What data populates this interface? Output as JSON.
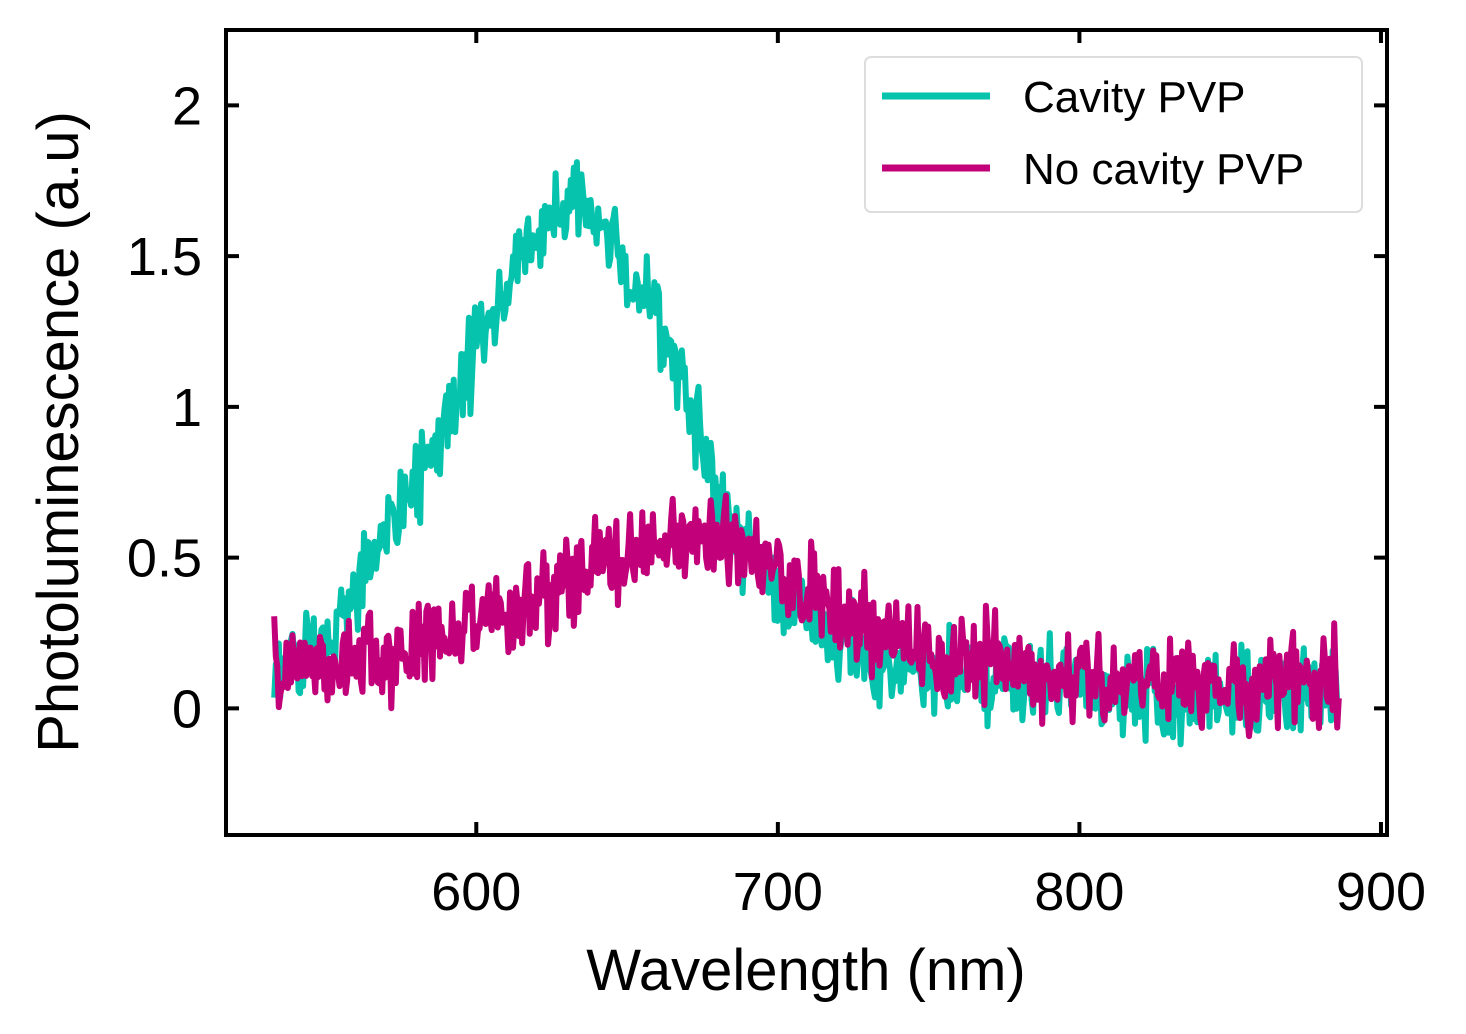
{
  "chart_data": {
    "type": "line",
    "title": "",
    "xlabel": "Wavelength (nm)",
    "ylabel": "Photoluminescence (a.u)",
    "xlim": [
      517,
      902
    ],
    "ylim": [
      -0.42,
      2.25
    ],
    "xticks": [
      600,
      700,
      800,
      900
    ],
    "xtick_labels": [
      "600",
      "700",
      "800",
      "900"
    ],
    "yticks": [
      0,
      0.5,
      1,
      1.5,
      2
    ],
    "ytick_labels": [
      "0",
      "0.5",
      "1",
      "1.5",
      "2"
    ],
    "grid": false,
    "legend_position": "top-right",
    "x_range_data": [
      533,
      886
    ],
    "series": [
      {
        "name": "Cavity PVP",
        "color": "#05C3AC",
        "noise_amplitude": 0.13,
        "envelope": [
          [
            533,
            0.12
          ],
          [
            545,
            0.18
          ],
          [
            555,
            0.3
          ],
          [
            565,
            0.5
          ],
          [
            575,
            0.68
          ],
          [
            585,
            0.82
          ],
          [
            595,
            1.05
          ],
          [
            605,
            1.3
          ],
          [
            615,
            1.5
          ],
          [
            625,
            1.62
          ],
          [
            632,
            1.68
          ],
          [
            640,
            1.62
          ],
          [
            650,
            1.45
          ],
          [
            660,
            1.3
          ],
          [
            670,
            1.05
          ],
          [
            680,
            0.7
          ],
          [
            690,
            0.52
          ],
          [
            700,
            0.42
          ],
          [
            710,
            0.3
          ],
          [
            720,
            0.22
          ],
          [
            730,
            0.16
          ],
          [
            750,
            0.1
          ],
          [
            780,
            0.1
          ],
          [
            800,
            0.07
          ],
          [
            820,
            0.05
          ],
          [
            840,
            0.04
          ],
          [
            860,
            0.05
          ],
          [
            886,
            0.05
          ]
        ]
      },
      {
        "name": "No cavity PVP",
        "color": "#C2007A",
        "noise_amplitude": 0.14,
        "envelope": [
          [
            533,
            0.14
          ],
          [
            560,
            0.16
          ],
          [
            580,
            0.2
          ],
          [
            600,
            0.27
          ],
          [
            620,
            0.36
          ],
          [
            640,
            0.46
          ],
          [
            655,
            0.53
          ],
          [
            665,
            0.56
          ],
          [
            680,
            0.55
          ],
          [
            695,
            0.49
          ],
          [
            710,
            0.4
          ],
          [
            725,
            0.3
          ],
          [
            740,
            0.22
          ],
          [
            760,
            0.17
          ],
          [
            780,
            0.15
          ],
          [
            800,
            0.12
          ],
          [
            820,
            0.1
          ],
          [
            840,
            0.08
          ],
          [
            860,
            0.08
          ],
          [
            886,
            0.08
          ]
        ]
      }
    ]
  }
}
